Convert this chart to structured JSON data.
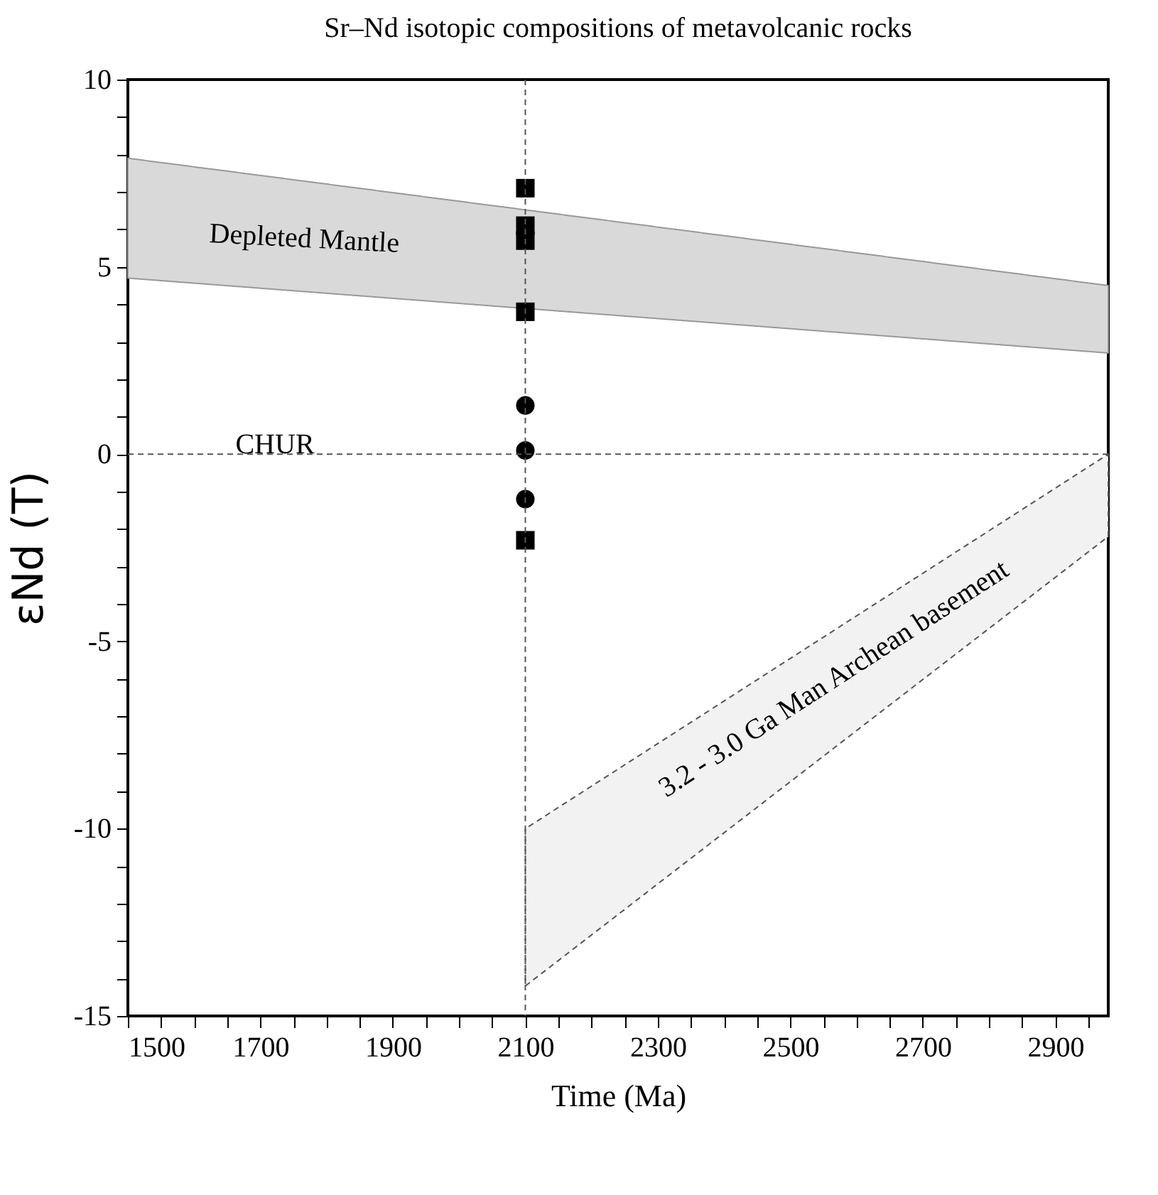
{
  "chart_data": {
    "type": "scatter",
    "title": "Sr–Nd isotopic compositions of metavolcanic rocks",
    "xlabel": "Time (Ma)",
    "ylabel": "εNd (T)",
    "xlim": [
      1500,
      2980
    ],
    "ylim": [
      -15,
      10
    ],
    "xticks": [
      1500,
      {
        "value": 1550,
        "label": null
      },
      {
        "value": 1600,
        "label": null
      },
      {
        "value": 1650,
        "label": null
      },
      1700,
      {
        "value": 1750,
        "label": null
      },
      {
        "value": 1800,
        "label": null
      },
      {
        "value": 1850,
        "label": null
      },
      1900,
      {
        "value": 1950,
        "label": null
      },
      {
        "value": 2000,
        "label": null
      },
      {
        "value": 2050,
        "label": null
      },
      2100,
      {
        "value": 2150,
        "label": null
      },
      {
        "value": 2200,
        "label": null
      },
      {
        "value": 2250,
        "label": null
      },
      2300,
      {
        "value": 2350,
        "label": null
      },
      {
        "value": 2400,
        "label": null
      },
      {
        "value": 2450,
        "label": null
      },
      2500,
      {
        "value": 2550,
        "label": null
      },
      {
        "value": 2600,
        "label": null
      },
      {
        "value": 2650,
        "label": null
      },
      2700,
      {
        "value": 2750,
        "label": null
      },
      {
        "value": 2800,
        "label": null
      },
      {
        "value": 2850,
        "label": null
      },
      2900,
      {
        "value": 2950,
        "label": null
      }
    ],
    "yticks": [
      -15,
      {
        "value": -14,
        "label": null
      },
      {
        "value": -13,
        "label": null
      },
      {
        "value": -12,
        "label": null
      },
      {
        "value": -11,
        "label": null
      },
      -10,
      {
        "value": -9,
        "label": null
      },
      {
        "value": -8,
        "label": null
      },
      {
        "value": -7,
        "label": null
      },
      {
        "value": -6,
        "label": null
      },
      -5,
      {
        "value": -4,
        "label": null
      },
      {
        "value": -3,
        "label": null
      },
      {
        "value": -2,
        "label": null
      },
      {
        "value": -1,
        "label": null
      },
      0,
      {
        "value": 1,
        "label": null
      },
      {
        "value": 2,
        "label": null
      },
      {
        "value": 3,
        "label": null
      },
      {
        "value": 4,
        "label": null
      },
      5,
      {
        "value": 6,
        "label": null
      },
      {
        "value": 7,
        "label": null
      },
      {
        "value": 8,
        "label": null
      },
      {
        "value": 9,
        "label": null
      },
      10
    ],
    "grid": false,
    "series": [
      {
        "type": "area",
        "color": "#d9d9d9",
        "x": [
          1500,
          2980
        ],
        "values": [
          null,
          null
        ],
        "upper": [
          7.9,
          4.5
        ],
        "lower": [
          4.7,
          2.7
        ]
      },
      {
        "type": "area",
        "color": "#f2f2f2",
        "line_style": "dashed",
        "x": [
          2100,
          2980
        ],
        "values": [
          null,
          null
        ],
        "upper": [
          -10.0,
          0.0
        ],
        "lower": [
          -14.2,
          -2.2
        ]
      },
      {
        "marker": "square",
        "color": "#000000",
        "x": [
          2100,
          2100,
          2100,
          2100
        ],
        "values": [
          7.1,
          6.1,
          5.7,
          3.8
        ]
      },
      {
        "marker": "circle",
        "color": "#000000",
        "x": [
          2100,
          2100,
          2100
        ],
        "values": [
          1.3,
          0.1,
          -1.2
        ]
      },
      {
        "marker": "square",
        "color": "#000000",
        "x": [
          2100
        ],
        "values": [
          -2.3
        ]
      }
    ],
    "ref_lines": [
      {
        "axis": "x",
        "value": 2100,
        "line_style": "dashed",
        "color": "#555555"
      },
      {
        "axis": "y",
        "value": 0,
        "line_style": "dashed",
        "color": "#555555"
      }
    ],
    "annotations": [
      "Depleted Mantle",
      "CHUR",
      "3.2 - 3.0 Ga Man  Archean basement"
    ]
  }
}
